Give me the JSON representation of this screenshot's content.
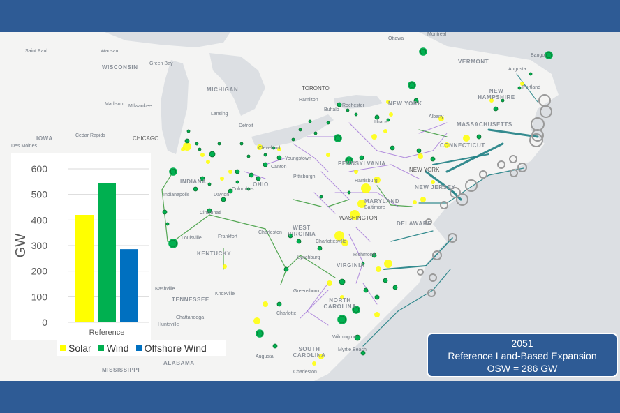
{
  "map": {
    "places": [
      {
        "id": "ottawa",
        "label": "Ottawa"
      },
      {
        "id": "montreal",
        "label": "Montréal"
      },
      {
        "id": "bangor",
        "label": "Bangor"
      },
      {
        "id": "augusta-me",
        "label": "Augusta"
      },
      {
        "id": "saint-paul",
        "label": "Saint Paul"
      },
      {
        "id": "wausau",
        "label": "Wausau"
      },
      {
        "id": "green-bay",
        "label": "Green Bay"
      },
      {
        "id": "madison",
        "label": "Madison"
      },
      {
        "id": "milwaukee",
        "label": "Milwaukee"
      },
      {
        "id": "lansing",
        "label": "Lansing"
      },
      {
        "id": "detroit",
        "label": "Detroit"
      },
      {
        "id": "toronto",
        "label": "TORONTO"
      },
      {
        "id": "hamilton",
        "label": "Hamilton"
      },
      {
        "id": "buffalo",
        "label": "Buffalo"
      },
      {
        "id": "rochester",
        "label": "Rochester"
      },
      {
        "id": "ithaca",
        "label": "Ithaca"
      },
      {
        "id": "albany",
        "label": "Albany"
      },
      {
        "id": "cedar-rapids",
        "label": "Cedar Rapids"
      },
      {
        "id": "des-moines",
        "label": "Des Moines"
      },
      {
        "id": "chicago",
        "label": "CHICAGO"
      },
      {
        "id": "cleveland",
        "label": "Cleveland"
      },
      {
        "id": "youngstown",
        "label": "Youngstown"
      },
      {
        "id": "canton",
        "label": "Canton"
      },
      {
        "id": "pittsburgh",
        "label": "Pittsburgh"
      },
      {
        "id": "harrisburg",
        "label": "Harrisburg"
      },
      {
        "id": "new-york",
        "label": "NEW YORK"
      },
      {
        "id": "indianapolis",
        "label": "Indianapolis"
      },
      {
        "id": "dayton",
        "label": "Dayton"
      },
      {
        "id": "columbus",
        "label": "Columbus"
      },
      {
        "id": "cincinnati",
        "label": "Cincinnati"
      },
      {
        "id": "baltimore",
        "label": "Baltimore"
      },
      {
        "id": "washington",
        "label": "WASHINGTON"
      },
      {
        "id": "charleston-wv",
        "label": "Charleston"
      },
      {
        "id": "frankfort",
        "label": "Frankfort"
      },
      {
        "id": "louisville",
        "label": "Louisville"
      },
      {
        "id": "charlottesville",
        "label": "Charlottesville"
      },
      {
        "id": "lynchburg",
        "label": "Lynchburg"
      },
      {
        "id": "richmond",
        "label": "Richmond"
      },
      {
        "id": "nashville",
        "label": "Nashville"
      },
      {
        "id": "knoxville",
        "label": "Knoxville"
      },
      {
        "id": "greensboro",
        "label": "Greensboro"
      },
      {
        "id": "charlotte",
        "label": "Charlotte"
      },
      {
        "id": "chattanooga",
        "label": "Chattanooga"
      },
      {
        "id": "huntsville",
        "label": "Huntsville"
      },
      {
        "id": "wilmington",
        "label": "Wilmington"
      },
      {
        "id": "myrtle-beach",
        "label": "Myrtle Beach"
      },
      {
        "id": "augusta-ga",
        "label": "Augusta"
      },
      {
        "id": "charleston-sc",
        "label": "Charleston"
      },
      {
        "id": "portland",
        "label": "Portland"
      }
    ],
    "states": [
      {
        "id": "wisconsin",
        "label": "WISCONSIN"
      },
      {
        "id": "michigan",
        "label": "MICHIGAN"
      },
      {
        "id": "iowa",
        "label": "IOWA"
      },
      {
        "id": "vermont",
        "label": "VERMONT"
      },
      {
        "id": "new-hampshire",
        "label": "NEW HAMPSHIRE"
      },
      {
        "id": "massachusetts",
        "label": "MASSACHUSETTS"
      },
      {
        "id": "connecticut",
        "label": "CONNECTICUT"
      },
      {
        "id": "new-york-state",
        "label": "NEW YORK"
      },
      {
        "id": "pennsylvania",
        "label": "PENNSYLVANIA"
      },
      {
        "id": "new-jersey",
        "label": "NEW JERSEY"
      },
      {
        "id": "ohio",
        "label": "OHIO"
      },
      {
        "id": "indiana",
        "label": "INDIANA"
      },
      {
        "id": "maryland",
        "label": "MARYLAND"
      },
      {
        "id": "delaware",
        "label": "DELAWARE"
      },
      {
        "id": "west-virginia",
        "label": "WEST VIRGINIA"
      },
      {
        "id": "kentucky",
        "label": "KENTUCKY"
      },
      {
        "id": "virginia",
        "label": "VIRGINIA"
      },
      {
        "id": "tennessee",
        "label": "TENNESSEE"
      },
      {
        "id": "north-carolina",
        "label": "NORTH CAROLINA"
      },
      {
        "id": "south-carolina",
        "label": "SOUTH CAROLINA"
      },
      {
        "id": "alabama",
        "label": "ALABAMA"
      },
      {
        "id": "mississippi",
        "label": "MISSISSIPPI"
      }
    ],
    "colors": {
      "solar": "#ffff00",
      "wind": "#00b050",
      "offshore": "#0070c0",
      "land_line": "#3a9a3a",
      "tx_line": "#9b6ad6",
      "offshore_line": "#1f7f84",
      "offshore_site": "#9a9a9a"
    }
  },
  "chart_data": {
    "type": "bar",
    "categories": [
      "Reference"
    ],
    "series": [
      {
        "name": "Solar",
        "values": [
          420
        ],
        "color": "#ffff00"
      },
      {
        "name": "Wind",
        "values": [
          545
        ],
        "color": "#00b050"
      },
      {
        "name": "Offshore Wind",
        "values": [
          286
        ],
        "color": "#0070c0"
      }
    ],
    "ylabel": "GW",
    "xlabel": "",
    "ylim": [
      0,
      600
    ],
    "yticks": [
      0,
      100,
      200,
      300,
      400,
      500,
      600
    ],
    "grid": true,
    "legend": "bottom"
  },
  "info": {
    "year": "2051",
    "scenario": "Reference Land-Based Expansion",
    "osw": "OSW = 286 GW"
  }
}
